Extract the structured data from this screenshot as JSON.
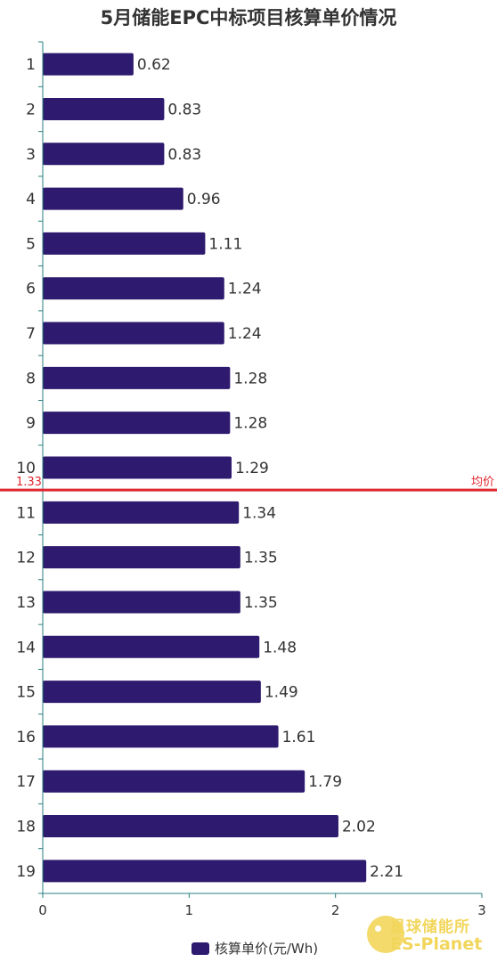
{
  "chart_data": {
    "type": "bar",
    "orientation": "horizontal",
    "title": "5月储能EPC中标项目核算单价情况",
    "categories": [
      "1",
      "2",
      "3",
      "4",
      "5",
      "6",
      "7",
      "8",
      "9",
      "10",
      "11",
      "12",
      "13",
      "14",
      "15",
      "16",
      "17",
      "18",
      "19"
    ],
    "series": [
      {
        "name": "核算单价(元/Wh)",
        "color": "#2e1a6e",
        "values": [
          0.62,
          0.83,
          0.83,
          0.96,
          1.11,
          1.24,
          1.24,
          1.28,
          1.28,
          1.29,
          1.34,
          1.35,
          1.35,
          1.48,
          1.49,
          1.61,
          1.79,
          2.02,
          2.21
        ]
      }
    ],
    "xlim": [
      0,
      3
    ],
    "xticks": [
      "0",
      "1",
      "2",
      "3"
    ],
    "grid": false,
    "legend_position": "bottom",
    "mark_line": {
      "value": 1.33,
      "value_label": "1.33",
      "label": "均价",
      "color": "#e0262e"
    }
  },
  "watermark": {
    "cn": "星球储能所",
    "en": "ES-Planet",
    "color": "#f2d65c"
  }
}
